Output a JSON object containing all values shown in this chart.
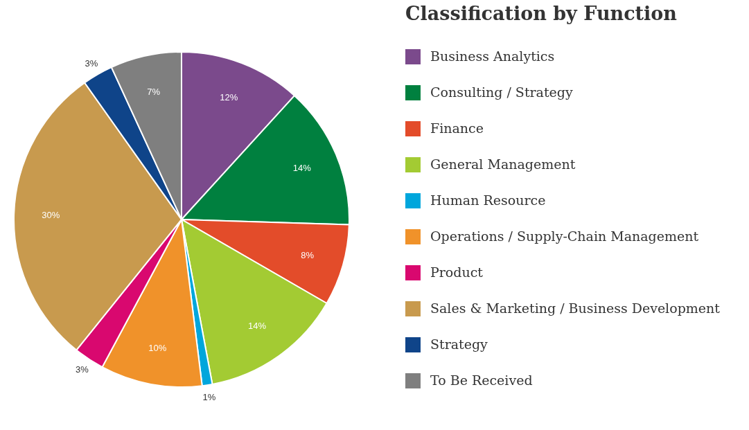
{
  "chart_data": {
    "type": "pie",
    "legend_title": "Classification by Function",
    "categories": [
      "Business Analytics",
      "Consulting / Strategy",
      "Finance",
      "General Management",
      "Human Resource",
      "Operations / Supply-Chain Management",
      "Product",
      "Sales & Marketing / Business Development",
      "Strategy",
      "To Be Received"
    ],
    "values": [
      12,
      14,
      8,
      14,
      1,
      10,
      3,
      30,
      3,
      7
    ],
    "value_labels": [
      "12%",
      "14%",
      "8%",
      "14%",
      "1%",
      "10%",
      "3%",
      "30%",
      "3%",
      "7%"
    ],
    "colors": [
      "#7b4a8c",
      "#00803f",
      "#e34c2a",
      "#a3cb33",
      "#00a6dc",
      "#f0922a",
      "#d9086f",
      "#c89a4e",
      "#0f4489",
      "#7f7f7f"
    ],
    "legend": "right"
  }
}
